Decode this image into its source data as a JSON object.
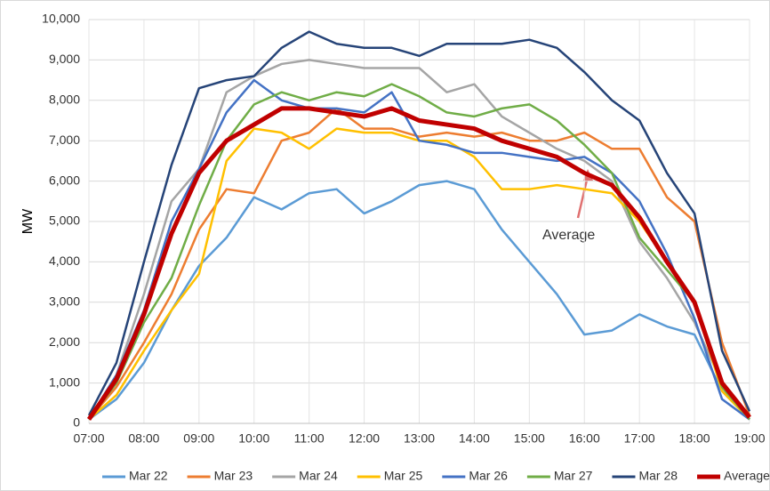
{
  "chart_data": {
    "type": "line",
    "y_label": "MW",
    "annotation": "Average",
    "x": [
      7,
      7.5,
      8,
      8.5,
      9,
      9.5,
      10,
      10.5,
      11,
      11.5,
      12,
      12.5,
      13,
      13.5,
      14,
      14.5,
      15,
      15.5,
      16,
      16.5,
      17,
      17.5,
      18,
      18.5,
      19
    ],
    "xlim": [
      7,
      19
    ],
    "xticks": [
      {
        "value": 7,
        "label": "07:00"
      },
      {
        "value": 8,
        "label": "08:00"
      },
      {
        "value": 9,
        "label": "09:00"
      },
      {
        "value": 10,
        "label": "10:00"
      },
      {
        "value": 11,
        "label": "11:00"
      },
      {
        "value": 12,
        "label": "12:00"
      },
      {
        "value": 13,
        "label": "13:00"
      },
      {
        "value": 14,
        "label": "14:00"
      },
      {
        "value": 15,
        "label": "15:00"
      },
      {
        "value": 16,
        "label": "16:00"
      },
      {
        "value": 17,
        "label": "17:00"
      },
      {
        "value": 18,
        "label": "18:00"
      },
      {
        "value": 19,
        "label": "19:00"
      }
    ],
    "ylim": [
      0,
      10000
    ],
    "yticks": [
      0,
      {
        "value": 1000,
        "label": "1,000"
      },
      {
        "value": 2000,
        "label": "2,000"
      },
      {
        "value": 3000,
        "label": "3,000"
      },
      {
        "value": 4000,
        "label": "4,000"
      },
      {
        "value": 5000,
        "label": "5,000"
      },
      {
        "value": 6000,
        "label": "6,000"
      },
      {
        "value": 7000,
        "label": "7,000"
      },
      {
        "value": 8000,
        "label": "8,000"
      },
      {
        "value": 9000,
        "label": "9,000"
      },
      {
        "value": 10000,
        "label": "10,000"
      }
    ],
    "grid": true,
    "legend": "bottom",
    "series": [
      {
        "name": "Mar 22",
        "color": "#5b9bd5",
        "values": [
          100,
          600,
          1500,
          2800,
          3900,
          4600,
          5600,
          5300,
          5700,
          5800,
          5200,
          5500,
          5900,
          6000,
          5800,
          4800,
          4000,
          3200,
          2200,
          2300,
          2700,
          2400,
          2200,
          800,
          100
        ]
      },
      {
        "name": "Mar 23",
        "color": "#ed7d31",
        "values": [
          100,
          900,
          2000,
          3200,
          4800,
          5800,
          5700,
          7000,
          7200,
          7800,
          7300,
          7300,
          7100,
          7200,
          7100,
          7200,
          7000,
          7000,
          7200,
          6800,
          6800,
          5600,
          5000,
          2000,
          200
        ]
      },
      {
        "name": "Mar 24",
        "color": "#a5a5a5",
        "values": [
          100,
          1200,
          3200,
          5500,
          6300,
          8200,
          8600,
          8900,
          9000,
          8900,
          8800,
          8800,
          8800,
          8200,
          8400,
          7600,
          7200,
          6800,
          6500,
          6000,
          4500,
          3600,
          2500,
          1000,
          100
        ]
      },
      {
        "name": "Mar 25",
        "color": "#ffc000",
        "values": [
          100,
          700,
          1800,
          2800,
          3700,
          6500,
          7300,
          7200,
          6800,
          7300,
          7200,
          7200,
          7000,
          7000,
          6600,
          5800,
          5800,
          5900,
          5800,
          5700,
          5000,
          4000,
          3000,
          800,
          100
        ]
      },
      {
        "name": "Mar 26",
        "color": "#4472c4",
        "values": [
          100,
          1200,
          2800,
          5000,
          6300,
          7700,
          8500,
          8000,
          7800,
          7800,
          7700,
          8200,
          7000,
          6900,
          6700,
          6700,
          6600,
          6500,
          6600,
          6200,
          5500,
          4200,
          2600,
          600,
          100
        ]
      },
      {
        "name": "Mar 27",
        "color": "#70ad47",
        "values": [
          100,
          1000,
          2500,
          3600,
          5400,
          7000,
          7900,
          8200,
          8000,
          8200,
          8100,
          8400,
          8100,
          7700,
          7600,
          7800,
          7900,
          7500,
          6900,
          6200,
          4600,
          3800,
          3000,
          900,
          100
        ]
      },
      {
        "name": "Mar 28",
        "color": "#264478",
        "values": [
          200,
          1500,
          4000,
          6400,
          8300,
          8500,
          8600,
          9300,
          9700,
          9400,
          9300,
          9300,
          9100,
          9400,
          9400,
          9400,
          9500,
          9300,
          8700,
          8000,
          7500,
          6200,
          5200,
          1800,
          300
        ]
      },
      {
        "name": "Average",
        "color": "#c00000",
        "values": [
          100,
          1100,
          2700,
          4700,
          6200,
          7000,
          7400,
          7800,
          7800,
          7700,
          7600,
          7800,
          7500,
          7400,
          7300,
          7000,
          6800,
          6600,
          6200,
          5900,
          5100,
          4000,
          3000,
          1000,
          150
        ]
      }
    ]
  }
}
